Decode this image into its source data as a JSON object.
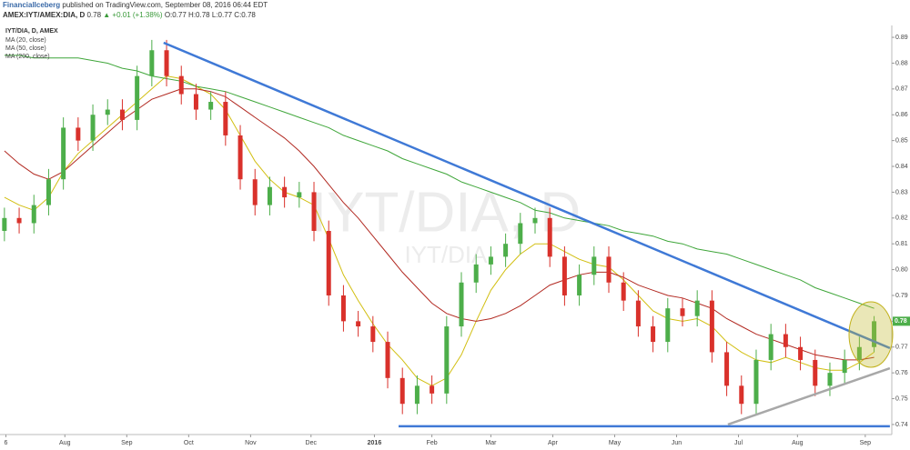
{
  "header": {
    "publisher": "FinancialIceberg",
    "published": "published on TradingView.com, September 08, 2016 06:44 EDT",
    "symbol": "AMEX:IYT/AMEX:DIA, D",
    "last": "0.78",
    "change": "▲ +0.01 (+1.38%)",
    "ohlc": "O:0.77 H:0.78 L:0.77 C:0.78"
  },
  "chart_data": {
    "type": "candlestick",
    "title": "IYT/DIA, D, AMEX",
    "watermark": "IYT/DIA, D",
    "watermark_sub": "IYT/DIA",
    "up_color": "#4dae4a",
    "down_color": "#d9312b",
    "open": [
      0.815,
      0.82,
      0.818,
      0.825,
      0.835,
      0.855,
      0.85,
      0.86,
      0.862,
      0.858,
      0.875,
      0.885,
      0.875,
      0.868,
      0.862,
      0.865,
      0.852,
      0.835,
      0.825,
      0.832,
      0.828,
      0.83,
      0.815,
      0.79,
      0.78,
      0.778,
      0.772,
      0.758,
      0.748,
      0.755,
      0.752,
      0.778,
      0.795,
      0.802,
      0.805,
      0.81,
      0.818,
      0.82,
      0.805,
      0.79,
      0.798,
      0.805,
      0.795,
      0.788,
      0.778,
      0.772,
      0.785,
      0.782,
      0.788,
      0.768,
      0.755,
      0.748,
      0.765,
      0.775,
      0.77,
      0.765,
      0.755,
      0.76,
      0.765,
      0.77
    ],
    "high": [
      0.824,
      0.824,
      0.829,
      0.839,
      0.859,
      0.859,
      0.864,
      0.866,
      0.866,
      0.879,
      0.889,
      0.889,
      0.879,
      0.872,
      0.869,
      0.869,
      0.856,
      0.839,
      0.836,
      0.836,
      0.834,
      0.834,
      0.819,
      0.794,
      0.784,
      0.782,
      0.776,
      0.762,
      0.759,
      0.759,
      0.782,
      0.799,
      0.806,
      0.809,
      0.814,
      0.822,
      0.824,
      0.824,
      0.809,
      0.802,
      0.809,
      0.809,
      0.799,
      0.792,
      0.782,
      0.789,
      0.789,
      0.792,
      0.792,
      0.772,
      0.759,
      0.769,
      0.779,
      0.779,
      0.774,
      0.769,
      0.764,
      0.769,
      0.774,
      0.782
    ],
    "low": [
      0.811,
      0.814,
      0.814,
      0.821,
      0.831,
      0.846,
      0.846,
      0.856,
      0.854,
      0.854,
      0.871,
      0.871,
      0.864,
      0.858,
      0.858,
      0.848,
      0.831,
      0.821,
      0.821,
      0.824,
      0.824,
      0.811,
      0.786,
      0.776,
      0.774,
      0.768,
      0.754,
      0.744,
      0.744,
      0.748,
      0.748,
      0.774,
      0.791,
      0.798,
      0.801,
      0.806,
      0.814,
      0.801,
      0.786,
      0.786,
      0.794,
      0.791,
      0.784,
      0.774,
      0.768,
      0.768,
      0.778,
      0.778,
      0.764,
      0.751,
      0.744,
      0.744,
      0.761,
      0.766,
      0.761,
      0.751,
      0.751,
      0.756,
      0.761,
      0.768
    ],
    "close": [
      0.82,
      0.818,
      0.825,
      0.835,
      0.855,
      0.85,
      0.86,
      0.862,
      0.858,
      0.875,
      0.885,
      0.875,
      0.868,
      0.862,
      0.865,
      0.852,
      0.835,
      0.825,
      0.832,
      0.828,
      0.83,
      0.815,
      0.79,
      0.78,
      0.778,
      0.772,
      0.758,
      0.748,
      0.755,
      0.752,
      0.778,
      0.795,
      0.802,
      0.805,
      0.81,
      0.818,
      0.82,
      0.805,
      0.79,
      0.798,
      0.805,
      0.795,
      0.788,
      0.778,
      0.772,
      0.785,
      0.782,
      0.788,
      0.768,
      0.755,
      0.748,
      0.765,
      0.775,
      0.77,
      0.765,
      0.755,
      0.76,
      0.765,
      0.77,
      0.78
    ],
    "series": [
      {
        "name": "MA (20, close)",
        "color": "#d2bf12",
        "values": [
          0.828,
          0.825,
          0.823,
          0.828,
          0.838,
          0.845,
          0.85,
          0.855,
          0.86,
          0.865,
          0.87,
          0.875,
          0.874,
          0.871,
          0.868,
          0.862,
          0.852,
          0.842,
          0.835,
          0.83,
          0.828,
          0.825,
          0.812,
          0.798,
          0.788,
          0.779,
          0.771,
          0.765,
          0.758,
          0.755,
          0.758,
          0.767,
          0.78,
          0.792,
          0.8,
          0.806,
          0.81,
          0.81,
          0.807,
          0.804,
          0.802,
          0.801,
          0.796,
          0.79,
          0.784,
          0.781,
          0.78,
          0.781,
          0.778,
          0.772,
          0.768,
          0.765,
          0.764,
          0.766,
          0.764,
          0.762,
          0.761,
          0.761,
          0.764,
          0.768
        ]
      },
      {
        "name": "MA (50, close)",
        "color": "#b22a22",
        "values": [
          0.846,
          0.841,
          0.837,
          0.835,
          0.838,
          0.843,
          0.848,
          0.853,
          0.858,
          0.862,
          0.866,
          0.868,
          0.87,
          0.87,
          0.869,
          0.867,
          0.863,
          0.859,
          0.855,
          0.851,
          0.846,
          0.84,
          0.833,
          0.826,
          0.82,
          0.813,
          0.806,
          0.799,
          0.793,
          0.787,
          0.783,
          0.781,
          0.78,
          0.781,
          0.783,
          0.786,
          0.79,
          0.794,
          0.796,
          0.798,
          0.799,
          0.799,
          0.797,
          0.794,
          0.792,
          0.79,
          0.789,
          0.787,
          0.785,
          0.781,
          0.778,
          0.775,
          0.773,
          0.771,
          0.769,
          0.767,
          0.766,
          0.765,
          0.765,
          0.766
        ]
      },
      {
        "name": "MA (200, close)",
        "color": "#3fa63a",
        "values": [
          0.883,
          0.883,
          0.882,
          0.882,
          0.882,
          0.882,
          0.881,
          0.88,
          0.878,
          0.877,
          0.875,
          0.874,
          0.873,
          0.871,
          0.87,
          0.869,
          0.867,
          0.865,
          0.863,
          0.861,
          0.859,
          0.857,
          0.855,
          0.852,
          0.85,
          0.848,
          0.846,
          0.843,
          0.841,
          0.839,
          0.837,
          0.834,
          0.832,
          0.83,
          0.828,
          0.826,
          0.823,
          0.822,
          0.82,
          0.819,
          0.818,
          0.817,
          0.815,
          0.814,
          0.813,
          0.811,
          0.81,
          0.808,
          0.807,
          0.806,
          0.804,
          0.802,
          0.8,
          0.798,
          0.796,
          0.793,
          0.791,
          0.789,
          0.787,
          0.785
        ]
      }
    ],
    "trendlines": [
      {
        "color": "#3f79d6",
        "x": [
          10.8,
          60.07
        ],
        "y": [
          0.8879,
          0.7696
        ]
      },
      {
        "color": "#3f79d6",
        "x": [
          26.74,
          60.07
        ],
        "y": [
          0.7393,
          0.7393
        ]
      },
      {
        "color": "#a8a8a8",
        "x": [
          49.08,
          60.07
        ],
        "y": [
          0.74,
          0.7618
        ]
      }
    ],
    "xlim": [
      -0.3,
      60.2
    ],
    "xticks": [
      {
        "value": 0.1,
        "label": "6"
      },
      {
        "value": 4.1,
        "label": "Aug"
      },
      {
        "value": 8.3,
        "label": "Sep"
      },
      {
        "value": 12.5,
        "label": "Oct"
      },
      {
        "value": 16.7,
        "label": "Nov"
      },
      {
        "value": 20.8,
        "label": "Dec"
      },
      {
        "value": 25.1,
        "label": "2016"
      },
      {
        "value": 29.0,
        "label": "Feb"
      },
      {
        "value": 33.0,
        "label": "Mar"
      },
      {
        "value": 37.2,
        "label": "Apr"
      },
      {
        "value": 41.4,
        "label": "May"
      },
      {
        "value": 45.6,
        "label": "Jun"
      },
      {
        "value": 49.8,
        "label": "Jul"
      },
      {
        "value": 53.8,
        "label": "Aug"
      },
      {
        "value": 58.4,
        "label": "Sep"
      }
    ],
    "ylim": [
      0.7361,
      0.8946
    ],
    "yticks": [
      0.74,
      0.75,
      0.76,
      0.77,
      0.78,
      0.79,
      {
        "value": 0.8,
        "label": "0.80"
      },
      0.81,
      0.82,
      0.83,
      0.84,
      0.85,
      0.86,
      0.87,
      0.88,
      0.89
    ]
  }
}
